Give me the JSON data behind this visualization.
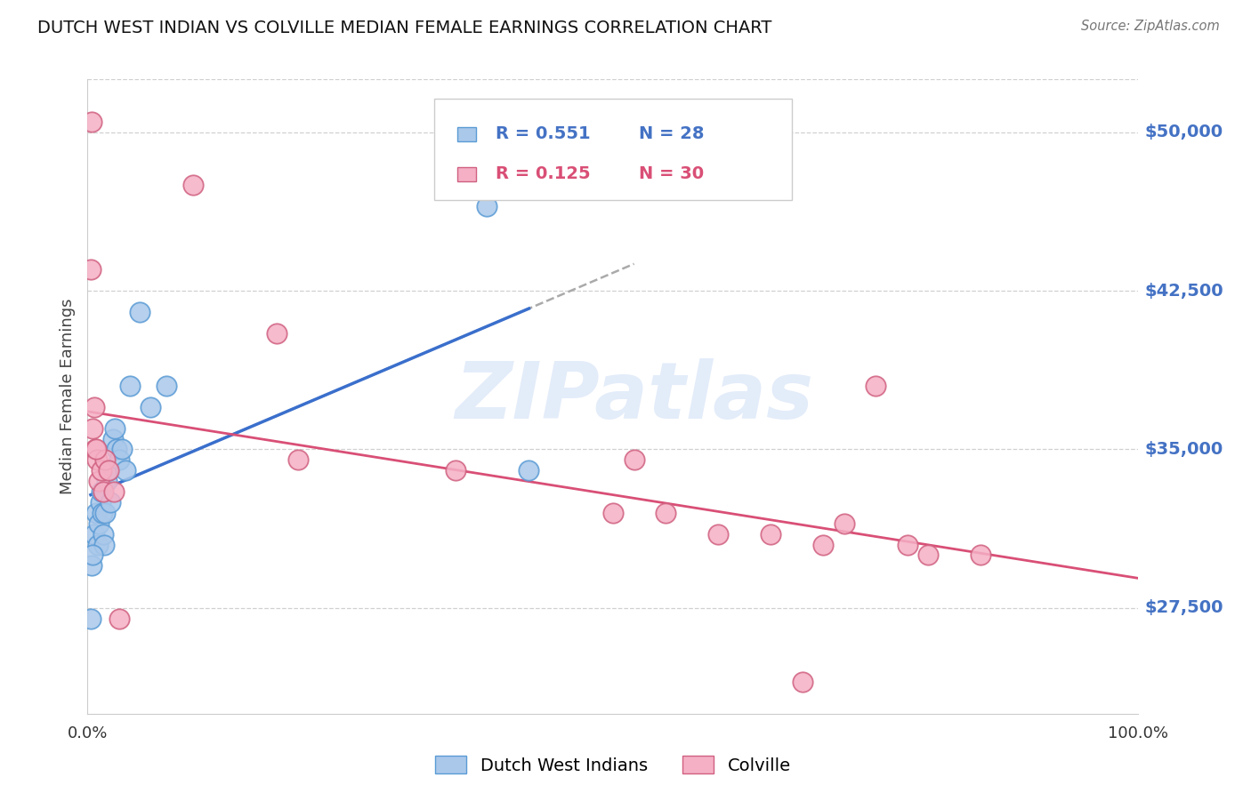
{
  "title": "DUTCH WEST INDIAN VS COLVILLE MEDIAN FEMALE EARNINGS CORRELATION CHART",
  "source": "Source: ZipAtlas.com",
  "ylabel": "Median Female Earnings",
  "xlim": [
    0,
    1.0
  ],
  "ylim": [
    22500,
    52500
  ],
  "yticks": [
    27500,
    35000,
    42500,
    50000
  ],
  "ytick_labels": [
    "$27,500",
    "$35,000",
    "$42,500",
    "$50,000"
  ],
  "bg_color": "#ffffff",
  "grid_color": "#d0d0d0",
  "watermark_text": "ZIPatlas",
  "blue_fill": "#aac8ea",
  "blue_edge": "#5A9BD5",
  "pink_fill": "#f5b0c5",
  "pink_edge": "#D06080",
  "line_blue": "#3A6FCC",
  "line_pink": "#D94F76",
  "line_dash": "#aaaaaa",
  "legend_label_blue": "Dutch West Indians",
  "legend_label_pink": "Colville",
  "blue_R": "0.551",
  "blue_N": "28",
  "pink_R": "0.125",
  "pink_N": "30",
  "ytick_color": "#4472C4",
  "blue_x": [
    0.004,
    0.006,
    0.008,
    0.01,
    0.011,
    0.012,
    0.013,
    0.014,
    0.015,
    0.016,
    0.017,
    0.018,
    0.02,
    0.022,
    0.024,
    0.026,
    0.028,
    0.03,
    0.033,
    0.036,
    0.04,
    0.05,
    0.06,
    0.075,
    0.003,
    0.005,
    0.38,
    0.42
  ],
  "blue_y": [
    29500,
    31000,
    32000,
    30500,
    31500,
    32500,
    33000,
    32000,
    31000,
    30500,
    32000,
    33500,
    34000,
    32500,
    35500,
    36000,
    35000,
    34500,
    35000,
    34000,
    38000,
    41500,
    37000,
    38000,
    27000,
    30000,
    46500,
    34000
  ],
  "pink_x": [
    0.003,
    0.005,
    0.007,
    0.009,
    0.011,
    0.013,
    0.015,
    0.017,
    0.02,
    0.025,
    0.03,
    0.1,
    0.18,
    0.2,
    0.35,
    0.5,
    0.52,
    0.6,
    0.65,
    0.7,
    0.72,
    0.75,
    0.8,
    0.85,
    0.004,
    0.006,
    0.008,
    0.55,
    0.68,
    0.78
  ],
  "pink_y": [
    43500,
    36000,
    35000,
    34500,
    33500,
    34000,
    33000,
    34500,
    34000,
    33000,
    27000,
    47500,
    40500,
    34500,
    34000,
    32000,
    34500,
    31000,
    31000,
    30500,
    31500,
    38000,
    30000,
    30000,
    50500,
    37000,
    35000,
    32000,
    24000,
    30500
  ]
}
